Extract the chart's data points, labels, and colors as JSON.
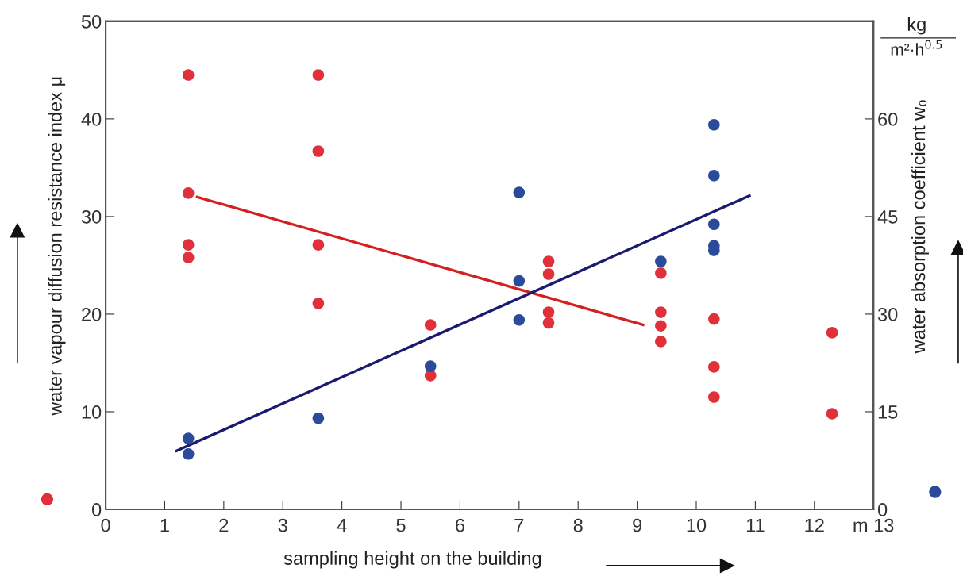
{
  "chart_data": {
    "type": "scatter",
    "xlabel": "sampling height on the building",
    "ylabel": "water vapour diffusion resistance index μ",
    "y2label": "water absorption coefficient w₀",
    "annotations": [
      "kg",
      "m²·h$^{0.5}$"
    ],
    "xlim": [
      0,
      13
    ],
    "xticks": [
      0,
      1,
      2,
      3,
      4,
      5,
      6,
      7,
      8,
      9,
      10,
      11,
      12,
      {
        "value": 13,
        "label": "m 13"
      }
    ],
    "ylim": [
      0,
      50
    ],
    "yticks": [
      0,
      10,
      20,
      30,
      40,
      50
    ],
    "y2lim": [
      0,
      75
    ],
    "y2ticks": [
      0,
      15,
      30,
      45,
      60
    ],
    "marker": "circle",
    "grid": false,
    "legend": false,
    "series": [
      {
        "color": "#e0303a",
        "x": [
          1.4,
          1.4,
          1.4,
          1.4,
          3.6,
          3.6,
          3.6,
          3.6,
          5.5,
          5.5,
          7.5,
          7.5,
          7.5,
          7.5,
          9.4,
          9.4,
          9.4,
          9.4,
          10.3,
          10.3,
          10.3,
          12.3,
          12.3
        ],
        "values": [
          44.5,
          32.4,
          27.1,
          25.8,
          44.5,
          36.7,
          27.1,
          21.1,
          18.9,
          13.7,
          25.4,
          24.1,
          20.2,
          19.1,
          24.2,
          20.2,
          18.8,
          17.2,
          19.5,
          14.6,
          11.5,
          18.1,
          9.8
        ]
      },
      {
        "color": "#2a4a9a",
        "axis": "y2",
        "x": [
          1.4,
          1.4,
          3.6,
          5.5,
          7,
          7,
          7,
          9.4,
          10.3,
          10.3,
          10.3,
          10.3,
          10.3
        ],
        "values": [
          10.9,
          8.5,
          14.0,
          22.0,
          48.7,
          35.1,
          29.1,
          38.1,
          59.1,
          51.3,
          43.8,
          40.5,
          39.8
        ]
      },
      {
        "type": "line",
        "color": "#d42020",
        "marker": "none",
        "x": [
          1.55,
          9.1
        ],
        "values": [
          32.0,
          18.9
        ]
      },
      {
        "type": "line",
        "color": "#1a1a70",
        "marker": "none",
        "axis": "y2",
        "x": [
          1.2,
          10.9
        ],
        "values": [
          9.0,
          48.2
        ]
      }
    ]
  }
}
